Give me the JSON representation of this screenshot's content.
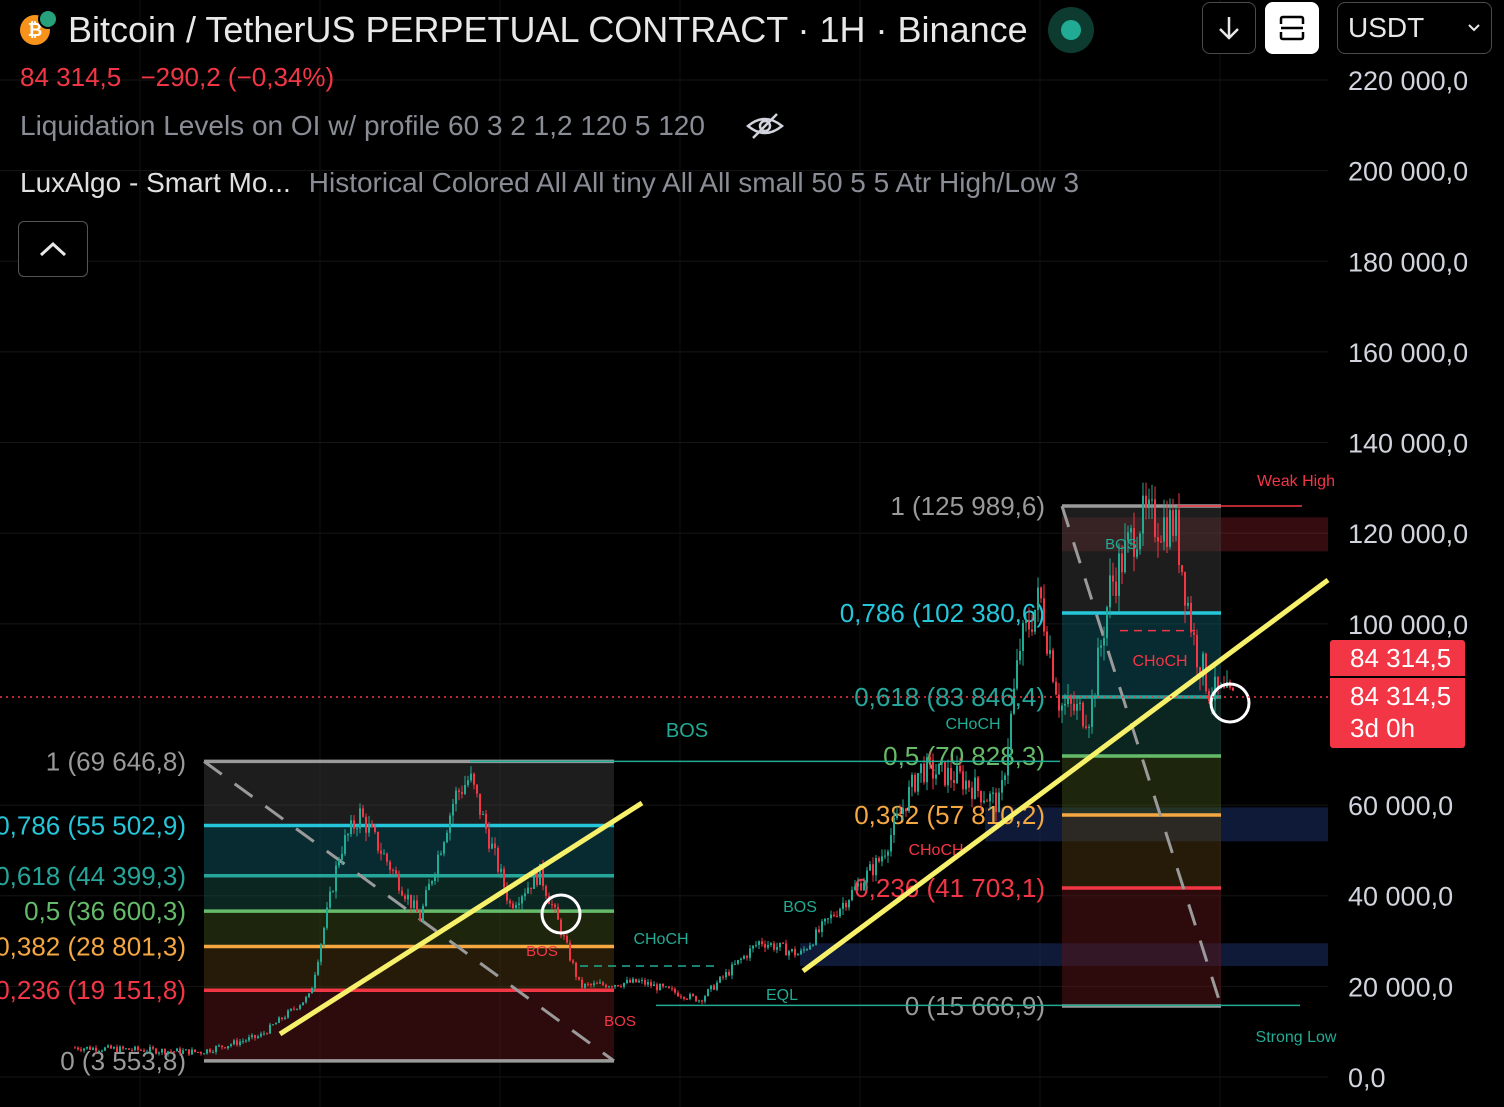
{
  "header": {
    "symbol_title": "Bitcoin / TetherUS PERPETUAL CONTRACT · 1H · Binance",
    "last_price": "84 314,5",
    "change": "−290,2 (−0,34%)",
    "coin_icon": "bitcoin-icon",
    "market_status": "open"
  },
  "indicators": [
    {
      "name": "Liquidation Levels on OI w/ profile 60 3 2 1,2 120 5 120",
      "icon": "eye-off-icon"
    },
    {
      "name": "LuxAlgo - Smart Mo...",
      "params": "Historical Colored All All tiny All All small 50 5 5 Atr High/Low 3"
    }
  ],
  "toolbar": {
    "currency": "USDT"
  },
  "price_axis": {
    "ticks": [
      "220 000,0",
      "200 000,0",
      "180 000,0",
      "160 000,0",
      "140 000,0",
      "120 000,0",
      "100 000,0",
      "60 000,0",
      "40 000,0",
      "20 000,0",
      "0,0"
    ],
    "tick_values": [
      220000,
      200000,
      180000,
      160000,
      140000,
      120000,
      100000,
      60000,
      40000,
      20000,
      0
    ],
    "last_price_tag": "84 314,5",
    "bid_tag": "84 314,5",
    "countdown": "3d 0h"
  },
  "fib_left": {
    "labels": [
      "1 (69 646,8)",
      "0,786 (55 502,9)",
      "0,618 (44 399,3)",
      "0,5 (36 600,3)",
      "0,382 (28 801,3)",
      "0,236 (19 151,8)",
      "0 (3 553,8)"
    ],
    "values": [
      69646.8,
      55502.9,
      44399.3,
      36600.3,
      28801.3,
      19151.8,
      3553.8
    ]
  },
  "fib_right": {
    "labels": [
      "1 (125 989,6)",
      "0,786 (102 380,6)",
      "0,618 (83 846,4)",
      "0,5 (70 828,3)",
      "0,382 (57 810,2)",
      "0,236 (41 703,1)",
      "0 (15 666,9)"
    ],
    "values": [
      125989.6,
      102380.6,
      83846.4,
      70828.3,
      57810.2,
      41703.1,
      15666.9
    ]
  },
  "fib_colors": [
    "#9a9a9a",
    "#26c6da",
    "#26a69a",
    "#66bb6a",
    "#f5a742",
    "#f23645",
    "#9a9a9a"
  ],
  "smc_labels": {
    "bos": "BOS",
    "choch": "CHoCH",
    "eql": "EQL",
    "weak_high": "Weak High",
    "strong_low": "Strong Low"
  },
  "colors": {
    "up": "#22ab94",
    "down": "#f23645",
    "trendline": "#f7f06b",
    "accent": "#2962ff"
  }
}
